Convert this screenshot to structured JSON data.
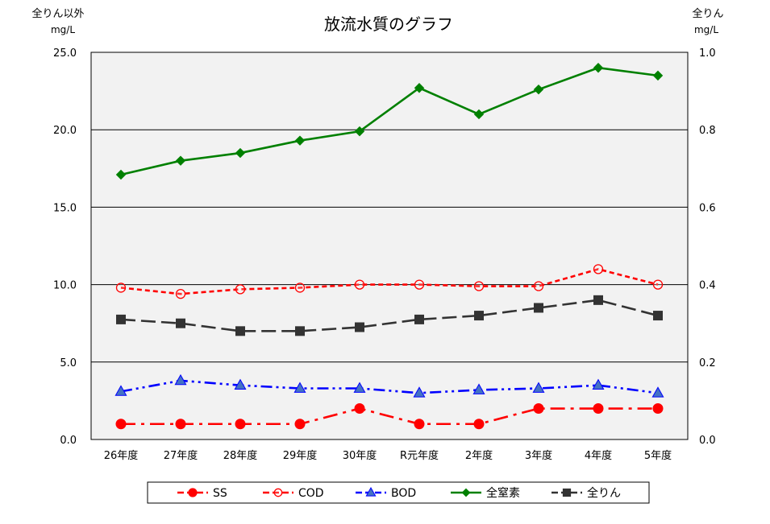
{
  "chart_data": {
    "type": "line",
    "title": "放流水質のグラフ",
    "left_axis": {
      "label_line1": "全りん以外",
      "label_line2": "mg/L",
      "ylim": [
        0,
        25
      ],
      "ticks": [
        0,
        5,
        10,
        15,
        20,
        25
      ],
      "tick_labels": [
        "0.0",
        "5.0",
        "10.0",
        "15.0",
        "20.0",
        "25.0"
      ]
    },
    "right_axis": {
      "label_line1": "全りん",
      "label_line2": "mg/L",
      "ylim": [
        0,
        1.0
      ],
      "ticks": [
        0,
        0.2,
        0.4,
        0.6,
        0.8,
        1.0
      ],
      "tick_labels": [
        "0.0",
        "0.2",
        "0.4",
        "0.6",
        "0.8",
        "1.0"
      ]
    },
    "categories": [
      "26年度",
      "27年度",
      "28年度",
      "29年度",
      "30年度",
      "R元年度",
      "2年度",
      "3年度",
      "4年度",
      "5年度"
    ],
    "grid": "horizontal",
    "legend_position": "bottom",
    "series": [
      {
        "name": "SS",
        "axis": "left",
        "color": "#ff0000",
        "dash": "18,7,4,7",
        "marker": "circle-filled",
        "values": [
          1.0,
          1.0,
          1.0,
          1.0,
          2.0,
          1.0,
          1.0,
          2.0,
          2.0,
          2.0
        ]
      },
      {
        "name": "COD",
        "axis": "left",
        "color": "#ff0000",
        "dash": "6,4",
        "marker": "circle-open",
        "values": [
          9.8,
          9.4,
          9.7,
          9.8,
          10.0,
          10.0,
          9.9,
          9.9,
          11.0,
          10.0
        ]
      },
      {
        "name": "BOD",
        "axis": "left",
        "color": "#0000ff",
        "dash": "14,5,3,5,3,5",
        "marker": "triangle",
        "values": [
          3.1,
          3.8,
          3.5,
          3.3,
          3.3,
          3.0,
          3.2,
          3.3,
          3.5,
          3.0
        ]
      },
      {
        "name": "全窒素",
        "axis": "left",
        "color": "#008000",
        "dash": "",
        "marker": "diamond",
        "values": [
          17.1,
          18.0,
          18.5,
          19.3,
          19.9,
          22.7,
          21.0,
          22.6,
          24.0,
          23.5
        ]
      },
      {
        "name": "全りん",
        "axis": "right",
        "color": "#333333",
        "dash": "18,7",
        "marker": "square",
        "values": [
          0.31,
          0.3,
          0.28,
          0.28,
          0.29,
          0.31,
          0.32,
          0.34,
          0.36,
          0.32
        ]
      }
    ]
  }
}
